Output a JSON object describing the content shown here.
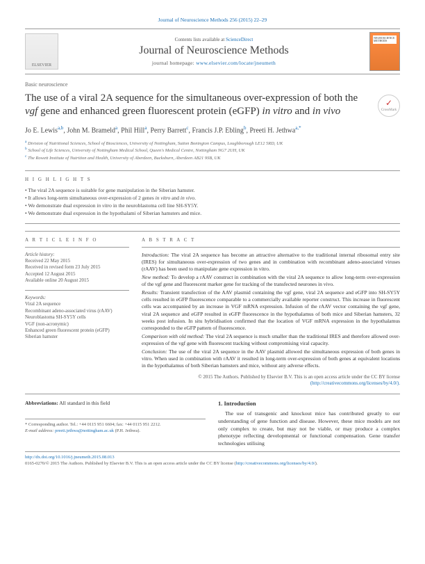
{
  "header": {
    "citation": "Journal of Neuroscience Methods 256 (2015) 22–29",
    "contents_prefix": "Contents lists available at ",
    "contents_link": "ScienceDirect",
    "journal_title": "Journal of Neuroscience Methods",
    "homepage_prefix": "journal homepage: ",
    "homepage_url": "www.elsevier.com/locate/jneumeth",
    "publisher": "ELSEVIER"
  },
  "article": {
    "section": "Basic neuroscience",
    "title_parts": {
      "p1": "The use of a viral 2A sequence for the simultaneous over-expression of both the ",
      "gene": "vgf",
      "p2": " gene and enhanced green fluorescent protein (eGFP) ",
      "iv1": "in vitro",
      "p3": " and ",
      "iv2": "in vivo"
    },
    "crossmark": "CrossMark"
  },
  "authors": {
    "list": [
      {
        "name": "Jo E. Lewis",
        "aff": "a,b"
      },
      {
        "name": "John M. Brameld",
        "aff": "a"
      },
      {
        "name": "Phil Hill",
        "aff": "a"
      },
      {
        "name": "Perry Barrett",
        "aff": "c"
      },
      {
        "name": "Francis J.P. Ebling",
        "aff": "b"
      },
      {
        "name": "Preeti H. Jethwa",
        "aff": "a,*"
      }
    ]
  },
  "affiliations": [
    {
      "key": "a",
      "text": "Division of Nutritional Sciences, School of Biosciences, University of Nottingham, Sutton Bonington Campus, Loughborough LE12 5RD, UK"
    },
    {
      "key": "b",
      "text": "School of Life Sciences, University of Nottingham Medical School, Queen's Medical Centre, Nottingham NG7 2UH, UK"
    },
    {
      "key": "c",
      "text": "The Rowett Institute of Nutrition and Health, University of Aberdeen, Bucksburn, Aberdeen AB21 9SB, UK"
    }
  ],
  "highlights": {
    "title": "H I G H L I G H T S",
    "items": [
      "The viral 2A sequence is suitable for gene manipulation in the Siberian hamster.",
      "It allows long-term simultaneous over-expression of 2 genes <em>in vitro</em> and <em>in vivo</em>.",
      "We demonstrate dual expression <em>in vitro</em> in the neuroblastoma cell line SH-SY5Y.",
      "We demonstrate dual expression in the hypothalami of Siberian hamsters and mice."
    ]
  },
  "article_info": {
    "title": "A R T I C L E   I N F O",
    "history_label": "Article history:",
    "history": [
      "Received 22 May 2015",
      "Received in revised form 23 July 2015",
      "Accepted 12 August 2015",
      "Available online 20 August 2015"
    ],
    "keywords_label": "Keywords:",
    "keywords": [
      "Viral 2A sequence",
      "Recombinant adeno-associated virus (rAAV)",
      "Neuroblastoma SH-SY5Y cells",
      "VGF (non-acronymic)",
      "Enhanced green fluorescent protein (eGFP)",
      "Siberian hamster"
    ]
  },
  "abstract": {
    "title": "A B S T R A C T",
    "segments": {
      "intro_label": "Introduction:",
      "intro": " The viral 2A sequence has become an attractive alternative to the traditional internal ribosomal entry site (IRES) for simultaneous over-expression of two genes and in combination with recombinant adeno-associated viruses (rAAV) has been used to manipulate gene expression in vitro.",
      "new_label": "New method:",
      "new": " To develop a rAAV construct in combination with the viral 2A sequence to allow long-term over-expression of the vgf gene and fluorescent marker gene for tracking of the transfected neurones in vivo.",
      "results_label": "Results:",
      "results": " Transient transfection of the AAV plasmid containing the vgf gene, viral 2A sequence and eGFP into SH-SY5Y cells resulted in eGFP fluorescence comparable to a commercially available reporter construct. This increase in fluorescent cells was accompanied by an increase in VGF mRNA expression. Infusion of the rAAV vector containing the vgf gene, viral 2A sequence and eGFP resulted in eGFP fluorescence in the hypothalamus of both mice and Siberian hamsters, 32 weeks post infusion. In situ hybridisation confirmed that the location of VGF mRNA expression in the hypothalamus corresponded to the eGFP pattern of fluorescence.",
      "comp_label": "Comparison with old method:",
      "comp": " The viral 2A sequence is much smaller than the traditional IRES and therefore allowed over-expression of the vgf gene with fluorescent tracking without compromising viral capacity.",
      "conc_label": "Conclusion:",
      "conc": " The use of the viral 2A sequence in the AAV plasmid allowed the simultaneous expression of both genes in vitro. When used in combination with rAAV it resulted in long-term over-expression of both genes at equivalent locations in the hypothalamus of both Siberian hamsters and mice, without any adverse effects."
    },
    "copyright": "© 2015 The Authors. Published by Elsevier B.V. This is an open access article under the CC BY license",
    "license_url": "(http://creativecommons.org/licenses/by/4.0/)."
  },
  "body": {
    "abbrev_label": "Abbreviations:",
    "abbrev_text": " All standard in this field",
    "intro_heading": "1.   Introduction",
    "intro_para": "The use of transgenic and knockout mice has contributed greatly to our understanding of gene function and disease. However, these mice models are not only complex to create, but may not be viable, or may produce a complex phenotype reflecting developmental or functional compensation. Gene transfer technologies utilising"
  },
  "footnote": {
    "corr": "* Corresponding author. Tel.: +44 0115 951 6604; fax: +44 0115 951 2212.",
    "email_label": "E-mail address: ",
    "email": "preeti.jethwa@nottingham.ac.uk",
    "email_suffix": " (P.H. Jethwa)."
  },
  "footer": {
    "doi": "http://dx.doi.org/10.1016/j.jneumeth.2015.08.013",
    "issn_line": "0165-0270/© 2015 The Authors. Published by Elsevier B.V. This is an open access article under the CC BY license (",
    "license_url": "http://creativecommons.org/licenses/by/4.0/",
    "close": ")."
  }
}
